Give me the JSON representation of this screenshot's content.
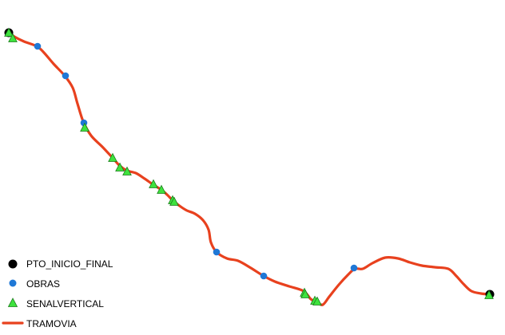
{
  "map": {
    "layers": {
      "route": {
        "name": "TRAMOVIA",
        "color": "#e8411e",
        "path": [
          [
            12,
            41
          ],
          [
            18,
            46
          ],
          [
            30,
            52
          ],
          [
            46,
            58
          ],
          [
            55,
            66
          ],
          [
            67,
            80
          ],
          [
            81,
            95
          ],
          [
            91,
            110
          ],
          [
            97,
            130
          ],
          [
            104,
            152
          ],
          [
            114,
            170
          ],
          [
            128,
            184
          ],
          [
            141,
            198
          ],
          [
            150,
            208
          ],
          [
            159,
            214
          ],
          [
            170,
            217
          ],
          [
            181,
            224
          ],
          [
            191,
            231
          ],
          [
            202,
            238
          ],
          [
            209,
            244
          ],
          [
            217,
            252
          ],
          [
            226,
            259
          ],
          [
            234,
            264
          ],
          [
            244,
            268
          ],
          [
            254,
            276
          ],
          [
            261,
            288
          ],
          [
            264,
            304
          ],
          [
            271,
            316
          ],
          [
            284,
            324
          ],
          [
            298,
            327
          ],
          [
            314,
            336
          ],
          [
            330,
            346
          ],
          [
            344,
            353
          ],
          [
            362,
            359
          ],
          [
            380,
            365
          ],
          [
            389,
            375
          ],
          [
            397,
            379
          ],
          [
            404,
            382
          ],
          [
            412,
            372
          ],
          [
            424,
            357
          ],
          [
            436,
            344
          ],
          [
            444,
            337
          ],
          [
            454,
            337
          ],
          [
            466,
            330
          ],
          [
            482,
            323
          ],
          [
            498,
            324
          ],
          [
            513,
            329
          ],
          [
            528,
            333
          ],
          [
            544,
            335
          ],
          [
            561,
            337
          ],
          [
            571,
            346
          ],
          [
            580,
            356
          ],
          [
            590,
            365
          ],
          [
            602,
            368
          ],
          [
            613,
            369
          ]
        ]
      },
      "obras": {
        "name": "OBRAS",
        "color": "#1f78d6",
        "points": [
          [
            47,
            58
          ],
          [
            82,
            95
          ],
          [
            105,
            154
          ],
          [
            271,
            316
          ],
          [
            330,
            346
          ],
          [
            443,
            336
          ]
        ]
      },
      "senales": {
        "name": "SENALVERTICAL",
        "color": "#3ee23e",
        "points": [
          [
            11,
            41
          ],
          [
            16,
            48
          ],
          [
            106,
            160
          ],
          [
            141,
            198
          ],
          [
            150,
            210
          ],
          [
            159,
            215
          ],
          [
            192,
            231
          ],
          [
            202,
            238
          ],
          [
            216,
            251
          ],
          [
            218,
            253
          ],
          [
            381,
            367
          ],
          [
            382,
            369
          ],
          [
            394,
            377
          ],
          [
            397,
            378
          ],
          [
            612,
            370
          ]
        ]
      },
      "extremos": {
        "name": "PTO_INICIO_FINAL",
        "color": "#000000",
        "points": [
          [
            11,
            41
          ],
          [
            613,
            369
          ]
        ]
      }
    },
    "legend": [
      {
        "label": "PTO_INICIO_FINAL",
        "kind": "black-circle"
      },
      {
        "label": "OBRAS",
        "kind": "blue-circle"
      },
      {
        "label": "SENALVERTICAL",
        "kind": "green-triangle"
      },
      {
        "label": "TRAMOVIA",
        "kind": "red-line"
      }
    ]
  }
}
